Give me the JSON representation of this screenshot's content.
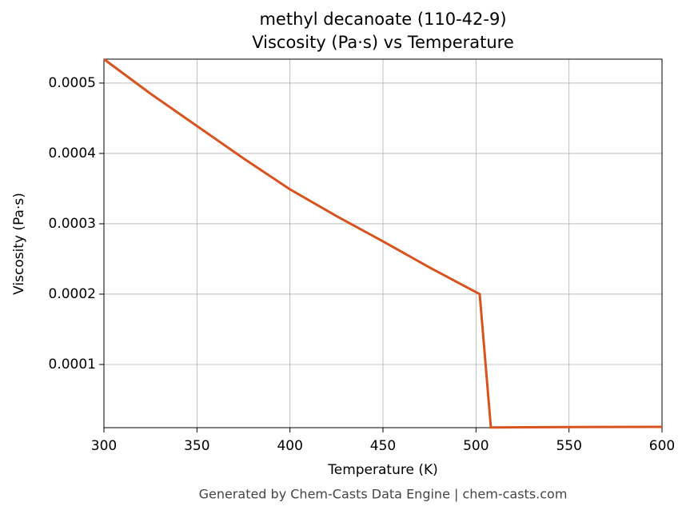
{
  "chart_data": {
    "type": "line",
    "title": "methyl decanoate (110-42-9)",
    "subtitle": "Viscosity (Pa·s) vs Temperature",
    "x_label": "Temperature (K)",
    "y_label": "Viscosity (Pa·s)",
    "caption": "Generated by Chem-Casts Data Engine | chem-casts.com",
    "x": [
      300,
      325,
      350,
      375,
      400,
      425,
      450,
      475,
      502,
      508,
      550,
      600
    ],
    "series": [
      {
        "name": "Viscosity",
        "color": "#d9531e",
        "values": [
          0.000534,
          0.000485,
          0.000439,
          0.000393,
          0.000349,
          0.000311,
          0.000275,
          0.000238,
          0.0002,
          1.05e-05,
          1.1e-05,
          1.13e-05
        ]
      }
    ],
    "xlim": [
      300,
      600
    ],
    "xticks": [
      300,
      350,
      400,
      450,
      500,
      550,
      600
    ],
    "ylim": [
      1.02e-05,
      0.000534
    ],
    "yticks": [
      0.0001,
      0.0002,
      0.0003,
      0.0004,
      0.0005
    ],
    "grid": true
  }
}
